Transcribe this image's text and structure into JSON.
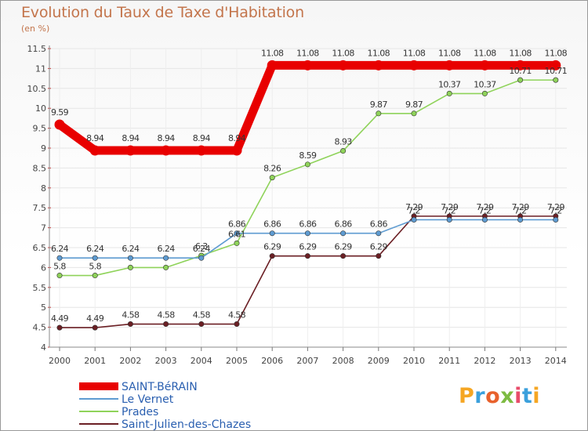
{
  "header": {
    "title": "Evolution du Taux de Taxe d'Habitation",
    "unit": "(en %)"
  },
  "branding": {
    "logo_text": "Proxiti",
    "logo_colors": [
      "#f5a623",
      "#3ba0dc",
      "#e8612c",
      "#7dbb42",
      "#e84c6b",
      "#3ba0dc",
      "#f5a623"
    ]
  },
  "chart_data": {
    "type": "line",
    "title": "Evolution du Taux de Taxe d'Habitation",
    "ylabel": "(en %)",
    "x": [
      "2000",
      "2001",
      "2002",
      "2003",
      "2004",
      "2005",
      "2006",
      "2007",
      "2008",
      "2009",
      "2010",
      "2011",
      "2012",
      "2013",
      "2014"
    ],
    "ylim": [
      4,
      11.5
    ],
    "yticks": [
      "4",
      "4.5",
      "5",
      "5.5",
      "6",
      "6.5",
      "7",
      "7.5",
      "8",
      "8.5",
      "9",
      "9.5",
      "10",
      "10.5",
      "11",
      "11.5"
    ],
    "grid": true,
    "legend_position": "bottom-left",
    "series": [
      {
        "name": "SAINT-BéRAIN",
        "color": "#e80000",
        "values": [
          9.59,
          8.94,
          8.94,
          8.94,
          8.94,
          8.94,
          11.08,
          11.08,
          11.08,
          11.08,
          11.08,
          11.08,
          11.08,
          11.08,
          11.08
        ],
        "labels": [
          "9.59",
          "8.94",
          "8.94",
          "8.94",
          "8.94",
          "8.94",
          "11.08",
          "11.08",
          "11.08",
          "11.08",
          "11.08",
          "11.08",
          "11.08",
          "11.08",
          "11.08"
        ]
      },
      {
        "name": "Le Vernet",
        "color": "#5e9bd1",
        "values": [
          6.24,
          6.24,
          6.24,
          6.24,
          6.24,
          6.86,
          6.86,
          6.86,
          6.86,
          6.86,
          7.2,
          7.2,
          7.2,
          7.2,
          7.2
        ],
        "labels": [
          "6.24",
          "6.24",
          "6.24",
          "6.24",
          "6.24",
          "6.86",
          "6.86",
          "6.86",
          "6.86",
          "6.86",
          "7.2",
          "7.2",
          "7.2",
          "7.2",
          "7.2"
        ]
      },
      {
        "name": "Prades",
        "color": "#8fd35a",
        "values": [
          5.8,
          5.8,
          6.0,
          6.0,
          6.3,
          6.61,
          8.26,
          8.59,
          8.93,
          9.87,
          9.87,
          10.37,
          10.37,
          10.71,
          10.71
        ],
        "labels": [
          "5.8",
          "5.8",
          "",
          "",
          "6.3",
          "6.61",
          "8.26",
          "8.59",
          "8.93",
          "9.87",
          "9.87",
          "10.37",
          "10.37",
          "10.71",
          "10.71"
        ]
      },
      {
        "name": "Saint-Julien-des-Chazes",
        "color": "#6b1f24",
        "values": [
          4.49,
          4.49,
          4.58,
          4.58,
          4.58,
          4.58,
          6.29,
          6.29,
          6.29,
          6.29,
          7.29,
          7.29,
          7.29,
          7.29,
          7.29
        ],
        "labels": [
          "4.49",
          "4.49",
          "4.58",
          "4.58",
          "4.58",
          "4.58",
          "6.29",
          "6.29",
          "6.29",
          "6.29",
          "7.29",
          "7.29",
          "7.29",
          "7.29",
          "7.29"
        ]
      }
    ]
  }
}
